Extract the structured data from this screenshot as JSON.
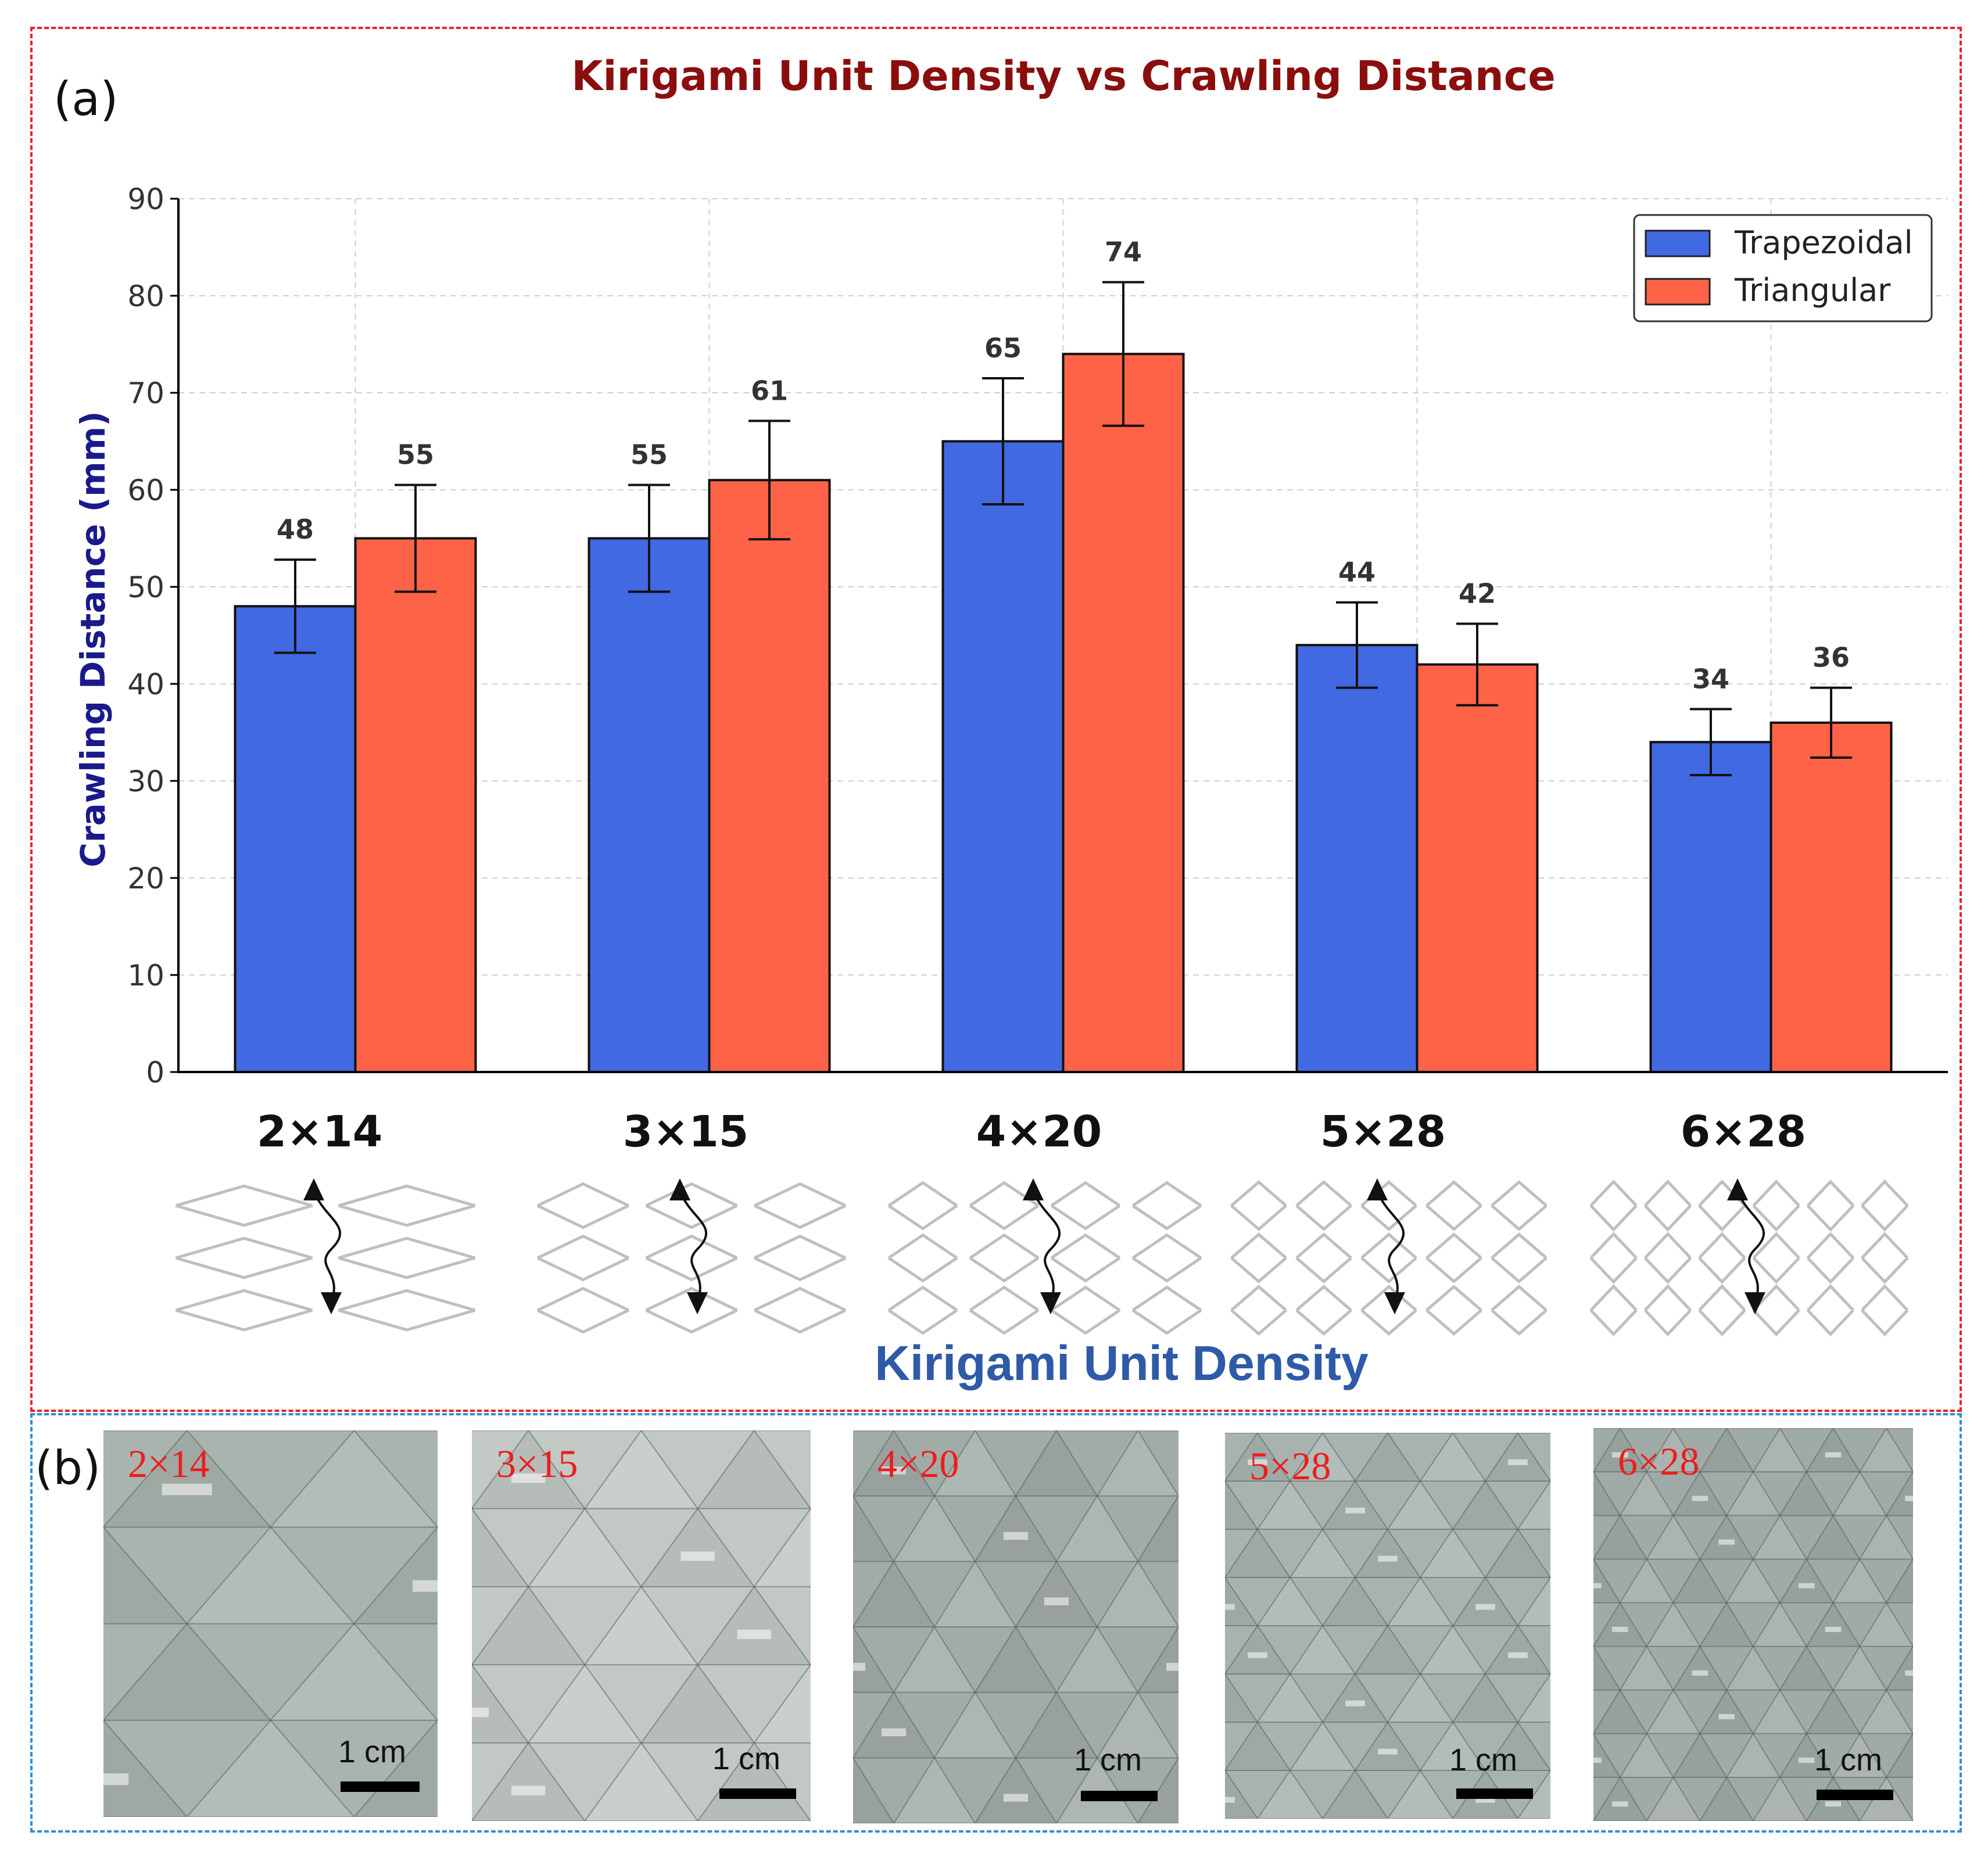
{
  "panel_a_label": "(a)",
  "panel_b_label": "(b)",
  "chart_data": {
    "type": "bar",
    "title": "Kirigami Unit Density vs Crawling Distance",
    "xlabel": "Kirigami Unit Density",
    "ylabel": "Crawling Distance (mm)",
    "categories": [
      "2×14",
      "3×15",
      "4×20",
      "5×28",
      "6×28"
    ],
    "series": [
      {
        "name": "Trapezoidal",
        "color": "#4169e1",
        "values": [
          48,
          55,
          65,
          44,
          34
        ],
        "errors": [
          4.8,
          5.5,
          6.5,
          4.4,
          3.4
        ]
      },
      {
        "name": "Triangular",
        "color": "#ff6347",
        "values": [
          55,
          61,
          74,
          42,
          36
        ],
        "errors": [
          5.5,
          6.1,
          7.4,
          4.2,
          3.6
        ]
      }
    ],
    "ylim": [
      0,
      90
    ],
    "yticks": [
      0,
      10,
      20,
      30,
      40,
      50,
      60,
      70,
      80,
      90
    ],
    "grid": true,
    "legend": "top-right",
    "title_color": "#8b0e0e",
    "ylabel_color": "#1a1a8c",
    "xlabel_color": "#2e5aa8"
  },
  "photos": [
    {
      "label": "2×14",
      "scale": "1 cm"
    },
    {
      "label": "3×15",
      "scale": "1 cm"
    },
    {
      "label": "4×20",
      "scale": "1 cm"
    },
    {
      "label": "5×28",
      "scale": "1 cm"
    },
    {
      "label": "6×28",
      "scale": "1 cm"
    }
  ]
}
